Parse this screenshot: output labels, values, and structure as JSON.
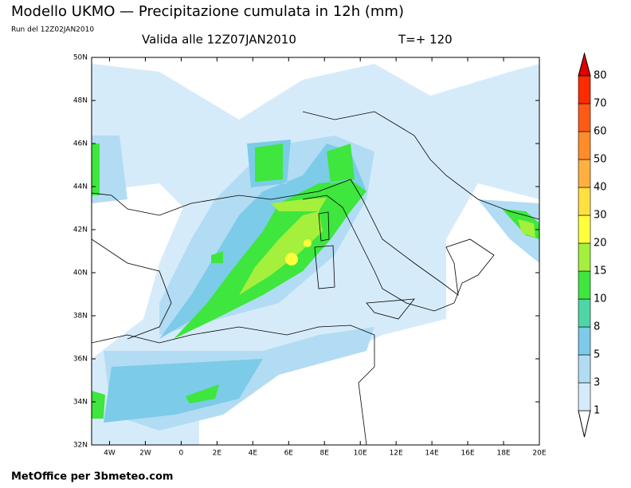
{
  "header": {
    "title": "Modello UKMO — Precipitazione cumulata in 12h (mm)",
    "run": "Run del 12Z02JAN2010",
    "valid": "Valida alle 12Z07JAN2010",
    "step": "T=+ 120"
  },
  "map": {
    "lat_labels": [
      "32N",
      "34N",
      "36N",
      "38N",
      "40N",
      "42N",
      "44N",
      "46N",
      "48N",
      "50N"
    ],
    "lon_labels": [
      "4W",
      "2W",
      "0",
      "2E",
      "4E",
      "6E",
      "8E",
      "10E",
      "12E",
      "14E",
      "16E",
      "18E",
      "20E"
    ]
  },
  "legend": {
    "levels": [
      1,
      3,
      5,
      8,
      10,
      15,
      20,
      30,
      40,
      50,
      60,
      70,
      80
    ],
    "colors": [
      "#ffffff",
      "#d6ebfa",
      "#b2dcf3",
      "#7ccbe8",
      "#4fd6a6",
      "#3ee63e",
      "#a4f03c",
      "#ffff3c",
      "#ffe040",
      "#ffb040",
      "#ff8c28",
      "#ff5a14",
      "#ff2a00",
      "#e00000"
    ]
  },
  "footer": "MetOffice per 3bmeteo.com"
}
